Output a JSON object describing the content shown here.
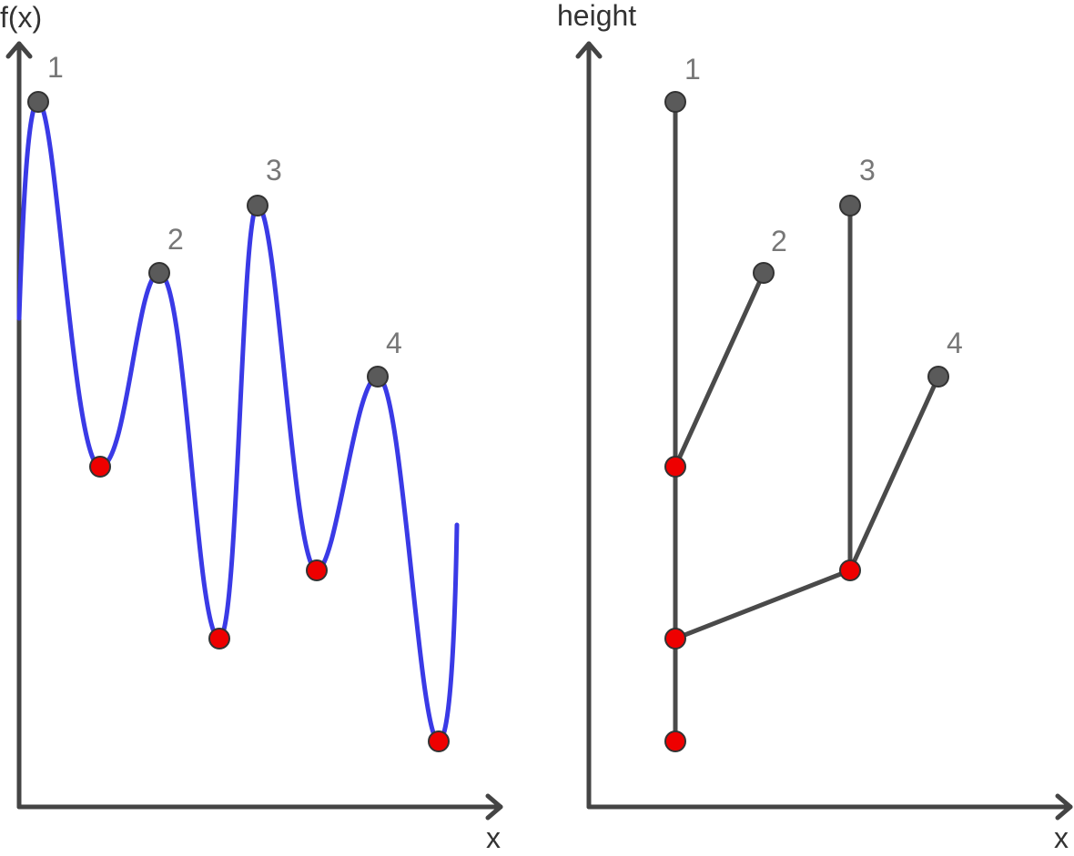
{
  "left_panel": {
    "y_axis_label": "f(x)",
    "x_axis_label": "x",
    "peak_labels": [
      "1",
      "2",
      "3",
      "4"
    ]
  },
  "right_panel": {
    "y_axis_label": "height",
    "x_axis_label": "x",
    "peak_labels": [
      "1",
      "2",
      "3",
      "4"
    ]
  },
  "colors": {
    "curve": "#3a3ae6",
    "maximum_node": "#5a5a5a",
    "minimum_node": "#ee0000",
    "axis": "#444444",
    "label": "#777777"
  }
}
